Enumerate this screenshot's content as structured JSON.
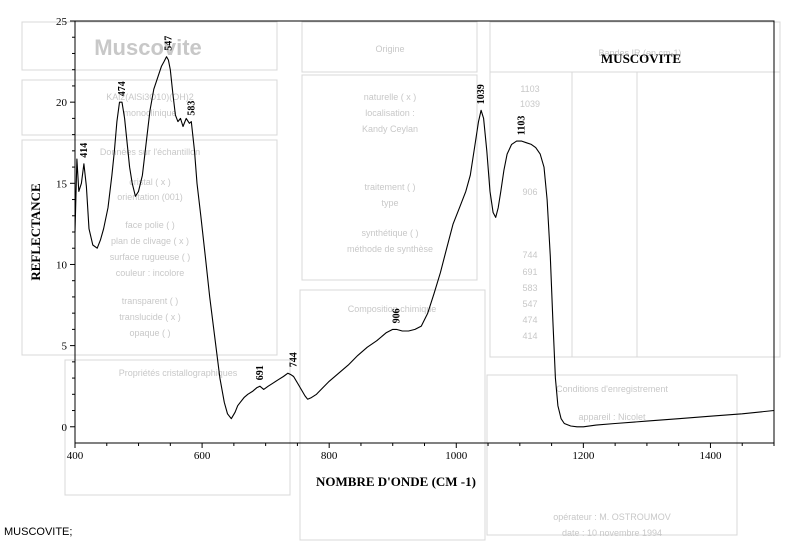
{
  "caption": "MUSCOVITE;",
  "chart_data": {
    "type": "line",
    "title": "MUSCOVITE",
    "xlabel": "NOMBRE D'ONDE (CM -1)",
    "ylabel": "REFLECTANCE",
    "xlim": [
      400,
      1500
    ],
    "ylim": [
      -1,
      25
    ],
    "xticks": [
      400,
      600,
      800,
      1000,
      1200,
      1400
    ],
    "yticks": [
      0,
      5,
      10,
      15,
      20,
      25
    ],
    "grid": false,
    "series": [
      {
        "color": "#000000",
        "x": [
          400,
          403,
          406,
          410,
          414,
          418,
          422,
          428,
          435,
          440,
          445,
          452,
          458,
          462,
          466,
          470,
          474,
          478,
          482,
          486,
          490,
          495,
          500,
          506,
          512,
          518,
          524,
          530,
          536,
          540,
          544,
          547,
          550,
          554,
          558,
          562,
          566,
          570,
          575,
          580,
          583,
          588,
          592,
          598,
          605,
          612,
          620,
          628,
          635,
          640,
          646,
          652,
          656,
          660,
          666,
          672,
          680,
          686,
          691,
          697,
          704,
          712,
          720,
          728,
          735,
          740,
          744,
          750,
          756,
          762,
          766,
          772,
          780,
          790,
          800,
          815,
          830,
          845,
          860,
          875,
          890,
          900,
          906,
          915,
          925,
          935,
          945,
          955,
          965,
          975,
          985,
          995,
          1005,
          1015,
          1022,
          1030,
          1035,
          1039,
          1043,
          1048,
          1053,
          1058,
          1062,
          1066,
          1070,
          1075,
          1080,
          1087,
          1095,
          1103,
          1110,
          1118,
          1125,
          1132,
          1138,
          1143,
          1148,
          1152,
          1156,
          1160,
          1165,
          1170,
          1180,
          1190,
          1200,
          1220,
          1250,
          1300,
          1350,
          1400,
          1450,
          1500
        ],
        "y": [
          12.0,
          16.5,
          14.5,
          15.0,
          16.2,
          14.8,
          12.2,
          11.2,
          11.0,
          11.5,
          12.2,
          13.5,
          15.5,
          17.0,
          18.8,
          20.0,
          20.0,
          19.0,
          17.5,
          16.0,
          15.0,
          14.2,
          14.5,
          15.5,
          17.5,
          19.5,
          20.8,
          21.5,
          22.2,
          22.5,
          22.8,
          22.6,
          22.0,
          20.5,
          19.2,
          18.8,
          19.0,
          18.5,
          19.0,
          18.7,
          18.8,
          17.0,
          15.0,
          13.0,
          10.5,
          8.0,
          5.5,
          3.0,
          1.5,
          0.8,
          0.5,
          0.9,
          1.3,
          1.5,
          1.8,
          2.0,
          2.2,
          2.4,
          2.5,
          2.3,
          2.5,
          2.7,
          2.9,
          3.1,
          3.3,
          3.2,
          3.1,
          2.7,
          2.3,
          1.9,
          1.7,
          1.8,
          2.0,
          2.4,
          2.8,
          3.3,
          3.8,
          4.4,
          4.9,
          5.3,
          5.8,
          6.0,
          6.0,
          5.9,
          5.9,
          6.0,
          6.2,
          7.0,
          8.2,
          9.5,
          11.0,
          12.5,
          13.5,
          14.5,
          15.5,
          17.5,
          18.8,
          19.5,
          19.0,
          17.0,
          14.5,
          13.2,
          12.9,
          13.5,
          14.5,
          15.8,
          16.8,
          17.4,
          17.6,
          17.6,
          17.5,
          17.4,
          17.2,
          16.8,
          16.0,
          14.0,
          10.5,
          6.5,
          3.0,
          1.3,
          0.5,
          0.2,
          0.05,
          0.0,
          0.0,
          0.1,
          0.2,
          0.35,
          0.5,
          0.65,
          0.8,
          1.0
        ]
      }
    ],
    "annotations": [
      {
        "text": "414",
        "x": 414,
        "y": 16.2
      },
      {
        "text": "474",
        "x": 474,
        "y": 20.0
      },
      {
        "text": "547",
        "x": 547,
        "y": 22.8
      },
      {
        "text": "583",
        "x": 583,
        "y": 18.8
      },
      {
        "text": "691",
        "x": 691,
        "y": 2.5
      },
      {
        "text": "744",
        "x": 744,
        "y": 3.3
      },
      {
        "text": "906",
        "x": 906,
        "y": 6.0
      },
      {
        "text": "1039",
        "x": 1039,
        "y": 19.5
      },
      {
        "text": "1103",
        "x": 1103,
        "y": 17.6
      }
    ]
  },
  "background_form": {
    "title": "Muscovite",
    "lines": [
      "KAl2(AlSi3O10)(OH)2",
      "monoclinique",
      "Données sur l'échantillon",
      "cristal ( x )",
      "orientation (001)",
      "face polie ( )",
      "plan de clivage ( x )",
      "surface rugueuse ( )",
      "couleur : incolore",
      "transparent ( )",
      "translucide ( x )",
      "opaque ( )",
      "Origine",
      "naturelle ( x )",
      "localisation :",
      "Kandy Ceylan",
      "traitement ( )",
      "type",
      "synthétique ( )",
      "méthode de synthèse",
      "Composition chimique",
      "Propriétés cristallographiques",
      "Conditions d'enregistrement",
      "appareil : Nicolet",
      "opérateur : M. OSTROUMOV",
      "date : 10 novembre 1994",
      "Bandes IR (en cm-1)",
      "1103",
      "1039",
      "906",
      "744",
      "691",
      "583",
      "547",
      "474",
      "414"
    ]
  }
}
